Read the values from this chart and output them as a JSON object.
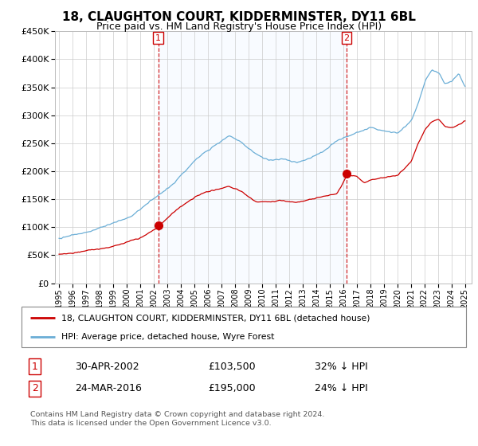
{
  "title": "18, CLAUGHTON COURT, KIDDERMINSTER, DY11 6BL",
  "subtitle": "Price paid vs. HM Land Registry's House Price Index (HPI)",
  "legend_line1": "18, CLAUGHTON COURT, KIDDERMINSTER, DY11 6BL (detached house)",
  "legend_line2": "HPI: Average price, detached house, Wyre Forest",
  "transaction1_date": "30-APR-2002",
  "transaction1_price": "£103,500",
  "transaction1_hpi": "32% ↓ HPI",
  "transaction2_date": "24-MAR-2016",
  "transaction2_price": "£195,000",
  "transaction2_hpi": "24% ↓ HPI",
  "footnote": "Contains HM Land Registry data © Crown copyright and database right 2024.\nThis data is licensed under the Open Government Licence v3.0.",
  "hpi_color": "#6baed6",
  "price_color": "#cc0000",
  "vline_color": "#cc0000",
  "fill_color": "#ddeeff",
  "ylim_min": 0,
  "ylim_max": 450000,
  "start_year": 1995,
  "end_year": 2025,
  "t1_year_val": 2002.33,
  "t2_year_val": 2016.25,
  "t1_price": 103500,
  "t2_price": 195000
}
